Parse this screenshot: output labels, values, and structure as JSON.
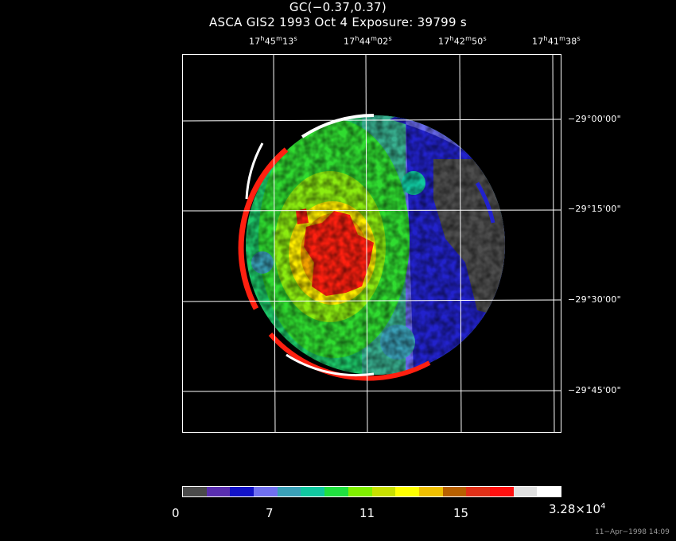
{
  "title": {
    "line1": "GC(−0.37,0.37)",
    "line2": "ASCA GIS2   1993 Oct  4    Exposure: 39799  s"
  },
  "ra_axis": [
    {
      "h": "17",
      "m": "45",
      "s": "13"
    },
    {
      "h": "17",
      "m": "44",
      "s": "02"
    },
    {
      "h": "17",
      "m": "42",
      "s": "50"
    },
    {
      "h": "17",
      "m": "41",
      "s": "38"
    }
  ],
  "dec_axis": [
    {
      "d": "−29",
      "m": "00",
      "s": "00"
    },
    {
      "d": "−29",
      "m": "15",
      "s": "00"
    },
    {
      "d": "−29",
      "m": "30",
      "s": "00"
    },
    {
      "d": "−29",
      "m": "45",
      "s": "00"
    }
  ],
  "colorbar": {
    "colors": [
      "#4a4a4a",
      "#5a2fb0",
      "#1212c8",
      "#7070f0",
      "#3aa0b8",
      "#10c8a0",
      "#20e040",
      "#80f000",
      "#c8e000",
      "#ffff00",
      "#f0c000",
      "#b86000",
      "#e03018",
      "#ff1010",
      "#e0e0e0",
      "#ffffff"
    ],
    "labels": {
      "l0": "0",
      "l1": "7",
      "l2": "11",
      "l3": "15",
      "max_mantissa": "3.28×10",
      "max_exp": "4"
    }
  },
  "timestamp": "11−Apr−1998 14:09"
}
